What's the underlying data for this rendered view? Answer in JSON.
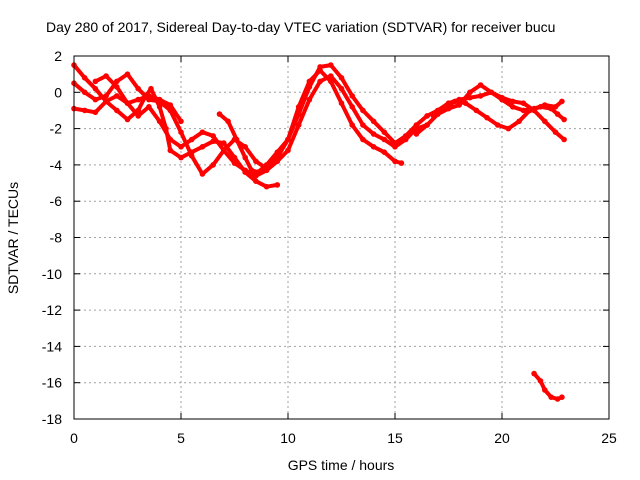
{
  "chart_data": {
    "type": "scatter",
    "title": "Day 280 of 2017, Sidereal Day-to-day VTEC variation (SDTVAR) for receiver bucu",
    "xlabel": "GPS time / hours",
    "ylabel": "SDTVAR / TECUs",
    "xlim": [
      0,
      25
    ],
    "ylim": [
      -18,
      2
    ],
    "xticks": [
      0,
      5,
      10,
      15,
      20,
      25
    ],
    "yticks": [
      2,
      0,
      -2,
      -4,
      -6,
      -8,
      -10,
      -12,
      -14,
      -16,
      -18
    ],
    "grid": true,
    "color": "#ff0000",
    "series": [
      {
        "name": "track-1",
        "points": [
          [
            0.0,
            1.5
          ],
          [
            0.5,
            0.8
          ],
          [
            1.0,
            0.2
          ],
          [
            1.5,
            -0.5
          ],
          [
            2.0,
            -1.0
          ],
          [
            2.5,
            -1.5
          ],
          [
            3.0,
            -1.0
          ],
          [
            3.3,
            -0.3
          ],
          [
            3.6,
            0.2
          ],
          [
            4.0,
            -0.8
          ],
          [
            4.3,
            -2.0
          ],
          [
            4.5,
            -3.2
          ],
          [
            5.0,
            -3.6
          ],
          [
            5.5,
            -3.3
          ],
          [
            6.0,
            -3.0
          ],
          [
            6.5,
            -2.7
          ],
          [
            7.0,
            -2.8
          ],
          [
            7.5,
            -3.6
          ],
          [
            8.0,
            -4.4
          ],
          [
            8.5,
            -4.9
          ],
          [
            9.0,
            -5.2
          ],
          [
            9.5,
            -5.1
          ]
        ]
      },
      {
        "name": "track-2",
        "points": [
          [
            0.0,
            0.5
          ],
          [
            0.5,
            0.0
          ],
          [
            1.0,
            -0.4
          ],
          [
            1.5,
            -0.2
          ],
          [
            2.0,
            0.6
          ],
          [
            2.5,
            1.0
          ],
          [
            3.0,
            0.2
          ],
          [
            3.5,
            -0.4
          ],
          [
            4.0,
            -0.5
          ],
          [
            4.5,
            -1.0
          ],
          [
            5.0,
            -2.2
          ],
          [
            5.5,
            -3.5
          ],
          [
            6.0,
            -4.5
          ],
          [
            6.5,
            -4.0
          ],
          [
            7.0,
            -3.2
          ],
          [
            7.5,
            -2.6
          ],
          [
            8.0,
            -3.0
          ],
          [
            8.5,
            -3.8
          ],
          [
            9.0,
            -4.2
          ],
          [
            9.5,
            -3.6
          ],
          [
            10.0,
            -2.6
          ],
          [
            10.5,
            -0.8
          ],
          [
            11.0,
            0.6
          ],
          [
            11.5,
            1.2
          ],
          [
            12.0,
            0.6
          ],
          [
            12.5,
            -0.6
          ],
          [
            13.0,
            -1.8
          ],
          [
            13.5,
            -2.6
          ],
          [
            14.0,
            -3.0
          ],
          [
            14.5,
            -3.3
          ],
          [
            15.0,
            -3.8
          ],
          [
            15.3,
            -3.9
          ]
        ]
      },
      {
        "name": "track-3",
        "points": [
          [
            0.0,
            -0.9
          ],
          [
            0.5,
            -1.0
          ],
          [
            1.0,
            -1.1
          ],
          [
            1.5,
            -0.5
          ],
          [
            2.0,
            -0.2
          ],
          [
            2.5,
            -0.6
          ],
          [
            3.0,
            -0.4
          ],
          [
            3.5,
            -0.2
          ],
          [
            4.0,
            -0.4
          ],
          [
            4.5,
            -0.7
          ],
          [
            5.0,
            -1.6
          ]
        ]
      },
      {
        "name": "track-4",
        "points": [
          [
            1.0,
            0.6
          ],
          [
            1.5,
            0.9
          ],
          [
            2.0,
            0.3
          ],
          [
            2.5,
            -0.6
          ],
          [
            3.0,
            -1.3
          ],
          [
            3.5,
            -0.8
          ],
          [
            4.0,
            -1.6
          ],
          [
            4.5,
            -2.6
          ],
          [
            5.0,
            -3.0
          ],
          [
            5.5,
            -2.6
          ],
          [
            6.0,
            -2.2
          ],
          [
            6.5,
            -2.4
          ],
          [
            7.0,
            -3.2
          ],
          [
            7.5,
            -3.9
          ],
          [
            8.0,
            -4.3
          ],
          [
            8.5,
            -4.6
          ],
          [
            9.0,
            -4.3
          ],
          [
            9.5,
            -3.8
          ],
          [
            10.0,
            -3.2
          ],
          [
            10.5,
            -1.8
          ],
          [
            11.0,
            -0.4
          ],
          [
            11.5,
            0.6
          ],
          [
            12.0,
            0.9
          ],
          [
            12.5,
            0.2
          ],
          [
            13.0,
            -0.8
          ],
          [
            13.5,
            -1.8
          ],
          [
            14.0,
            -2.3
          ],
          [
            14.5,
            -2.6
          ],
          [
            15.0,
            -3.0
          ],
          [
            15.5,
            -2.6
          ],
          [
            16.0,
            -2.0
          ],
          [
            16.5,
            -1.8
          ]
        ]
      },
      {
        "name": "track-5",
        "points": [
          [
            6.8,
            -1.2
          ],
          [
            7.2,
            -1.6
          ],
          [
            7.6,
            -2.6
          ],
          [
            8.0,
            -3.6
          ],
          [
            8.3,
            -4.3
          ],
          [
            8.6,
            -4.4
          ],
          [
            9.0,
            -4.0
          ],
          [
            9.5,
            -3.3
          ],
          [
            10.0,
            -2.6
          ],
          [
            10.5,
            -1.2
          ],
          [
            11.0,
            0.3
          ],
          [
            11.5,
            1.4
          ],
          [
            12.0,
            1.5
          ],
          [
            12.5,
            0.8
          ],
          [
            13.0,
            -0.2
          ],
          [
            13.5,
            -1.0
          ],
          [
            14.0,
            -1.6
          ],
          [
            14.5,
            -2.2
          ],
          [
            15.0,
            -2.8
          ],
          [
            15.5,
            -2.4
          ],
          [
            16.0,
            -1.8
          ],
          [
            16.5,
            -1.3
          ],
          [
            17.0,
            -1.0
          ],
          [
            17.5,
            -0.6
          ],
          [
            18.0,
            -0.4
          ],
          [
            18.5,
            -0.3
          ],
          [
            19.0,
            -0.2
          ],
          [
            19.5,
            0.0
          ],
          [
            20.0,
            -0.4
          ],
          [
            20.5,
            -0.8
          ],
          [
            21.0,
            -1.0
          ],
          [
            21.5,
            -0.9
          ],
          [
            22.0,
            -0.7
          ],
          [
            22.5,
            -0.8
          ],
          [
            22.8,
            -0.5
          ]
        ]
      },
      {
        "name": "track-6",
        "points": [
          [
            16.0,
            -2.3
          ],
          [
            16.5,
            -1.8
          ],
          [
            17.0,
            -1.2
          ],
          [
            17.5,
            -0.9
          ],
          [
            18.0,
            -0.7
          ],
          [
            18.5,
            0.0
          ],
          [
            19.0,
            0.4
          ],
          [
            19.5,
            0.0
          ],
          [
            20.0,
            -0.3
          ],
          [
            20.5,
            -0.5
          ],
          [
            21.0,
            -0.6
          ],
          [
            21.5,
            -1.0
          ],
          [
            22.0,
            -1.6
          ],
          [
            22.5,
            -2.2
          ],
          [
            22.9,
            -2.6
          ]
        ]
      },
      {
        "name": "track-7",
        "points": [
          [
            16.8,
            -1.3
          ],
          [
            17.3,
            -0.9
          ],
          [
            17.8,
            -0.5
          ],
          [
            18.3,
            -0.6
          ],
          [
            18.8,
            -1.0
          ],
          [
            19.3,
            -1.4
          ],
          [
            19.8,
            -1.8
          ],
          [
            20.3,
            -2.0
          ],
          [
            20.8,
            -1.6
          ],
          [
            21.3,
            -1.0
          ],
          [
            21.8,
            -0.8
          ],
          [
            22.3,
            -0.9
          ],
          [
            22.6,
            -1.2
          ],
          [
            22.9,
            -1.5
          ]
        ]
      },
      {
        "name": "track-8",
        "points": [
          [
            21.5,
            -15.5
          ],
          [
            21.8,
            -15.9
          ],
          [
            22.0,
            -16.4
          ],
          [
            22.3,
            -16.8
          ],
          [
            22.6,
            -16.9
          ],
          [
            22.8,
            -16.8
          ]
        ]
      }
    ]
  }
}
